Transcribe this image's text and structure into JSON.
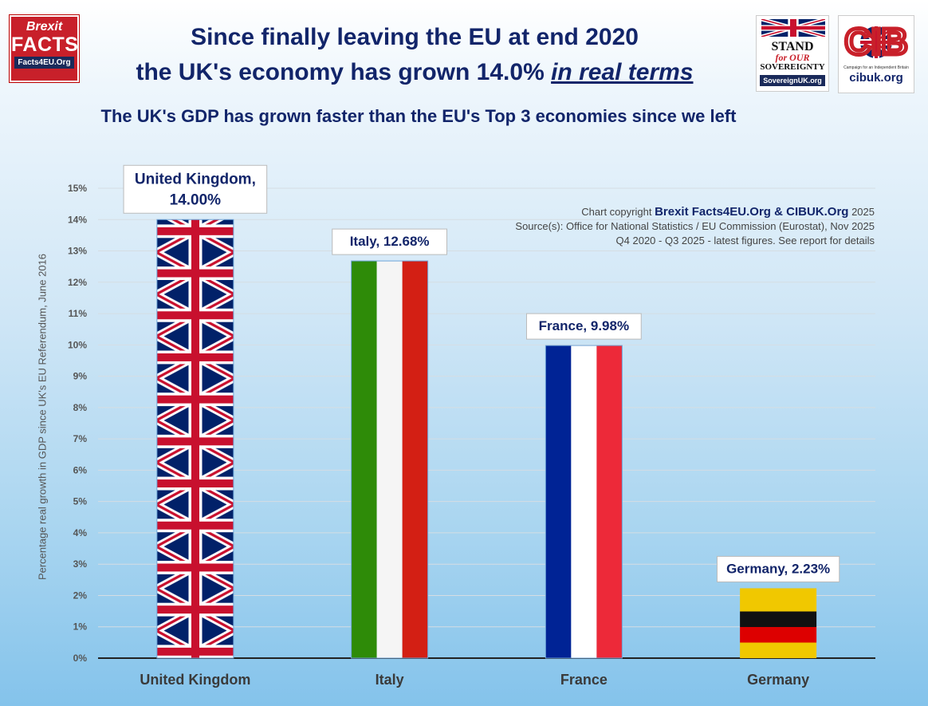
{
  "header": {
    "title_line1": "Since finally leaving the EU at end 2020",
    "title_line2_prefix": "the UK's economy has grown 14.0%",
    "title_line2_emphasis": "in real terms",
    "subtitle": "The UK's GDP has grown faster than the EU's Top 3 economies since we left"
  },
  "logos": {
    "brexit_facts": {
      "line1": "Brexit",
      "line2": "FACTS",
      "line3": "Facts4EU.Org",
      "color": "#c8202a"
    },
    "sovereignty": {
      "line1": "STAND",
      "line2": "for OUR",
      "line3": "SOVEREIGNTY",
      "line4": "SovereignUK.org"
    },
    "cib": {
      "mark": "CIB",
      "tagline": "Campaign for an Independent Britain",
      "site": "cibuk.org"
    }
  },
  "notes": {
    "copyright_prefix": "Chart copyright",
    "copyright_brand": "Brexit Facts4EU.Org & CIBUK.Org",
    "copyright_year": "2025",
    "source": "Source(s): Office for National Statistics  / EU Commission (Eurostat), Nov 2025",
    "period": "Q4 2020 - Q3 2025 - latest figures. See report for details"
  },
  "chart_data": {
    "type": "bar",
    "categories": [
      "United Kingdom",
      "Italy",
      "France",
      "Germany"
    ],
    "values": [
      14.0,
      12.68,
      9.98,
      2.23
    ],
    "data_labels": [
      "United Kingdom,\n14.00%",
      "Italy, 12.68%",
      "France, 9.98%",
      "Germany, 2.23%"
    ],
    "bar_fill": [
      "union-jack-flag",
      "italy-flag",
      "france-flag",
      "germany-flag"
    ],
    "ylabel": "Percentage real growth in GDP since UK's EU Referendum, June 2016",
    "ylim": [
      0,
      15
    ],
    "ytick_step": 1,
    "ytick_format": "percent",
    "grid": true,
    "colors": {
      "axis_text": "#555555",
      "category_text": "#3a3a3a",
      "label_text": "#12256a",
      "uk_blue": "#012169",
      "uk_red": "#c8102e",
      "italy": [
        "#2e8b08",
        "#f5f5f5",
        "#d31f14"
      ],
      "france": [
        "#002395",
        "#ffffff",
        "#ed2939"
      ],
      "germany": [
        "#f0c800",
        "#111111",
        "#dd0000"
      ]
    }
  }
}
